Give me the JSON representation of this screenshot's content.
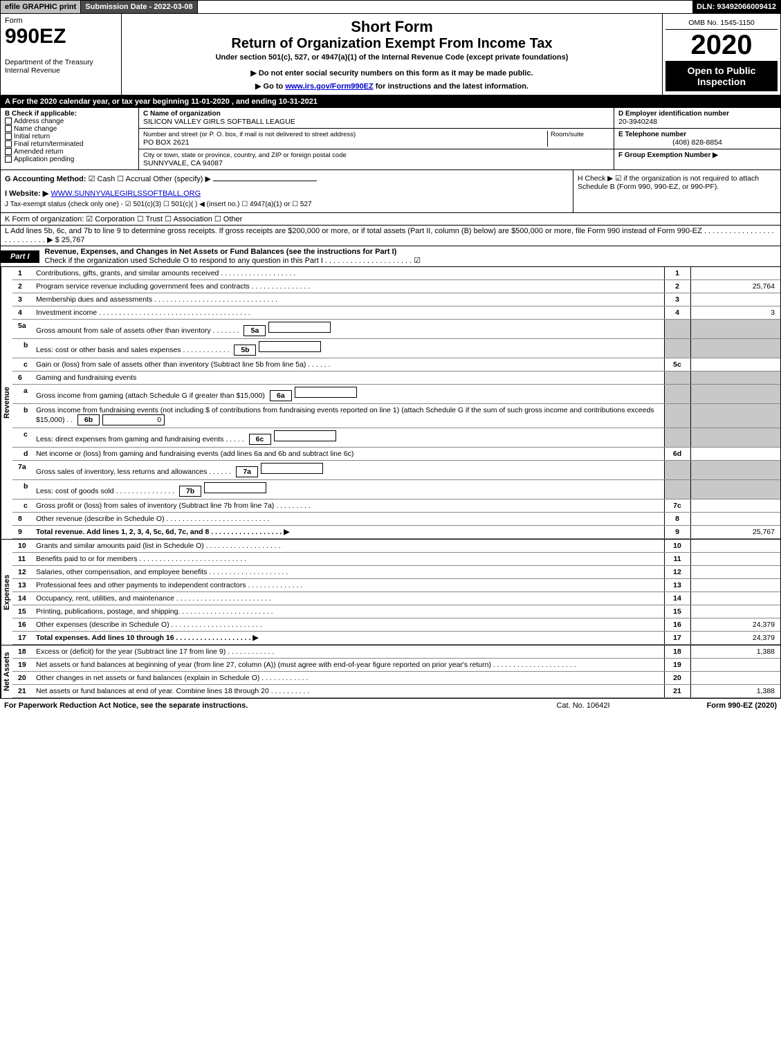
{
  "top": {
    "efile": "efile GRAPHIC print",
    "submission": "Submission Date - 2022-03-08",
    "dln": "DLN: 93492066009412"
  },
  "header": {
    "form_word": "Form",
    "form_num": "990EZ",
    "dept": "Department of the Treasury\nInternal Revenue",
    "title": "Short Form",
    "subtitle": "Return of Organization Exempt From Income Tax",
    "under": "Under section 501(c), 527, or 4947(a)(1) of the Internal Revenue Code (except private foundations)",
    "warn": "▶ Do not enter social security numbers on this form as it may be made public.",
    "goto_pre": "▶ Go to ",
    "goto_link": "www.irs.gov/Form990EZ",
    "goto_post": " for instructions and the latest information.",
    "omb": "OMB No. 1545-1150",
    "year": "2020",
    "open": "Open to Public Inspection"
  },
  "a_line": "A For the 2020 calendar year, or tax year beginning 11-01-2020 , and ending 10-31-2021",
  "b": {
    "label": "B Check if applicable:",
    "items": [
      "Address change",
      "Name change",
      "Initial return",
      "Final return/terminated",
      "Amended return",
      "Application pending"
    ]
  },
  "c": {
    "name_lbl": "C Name of organization",
    "name": "SILICON VALLEY GIRLS SOFTBALL LEAGUE",
    "addr_lbl": "Number and street (or P. O. box, if mail is not delivered to street address)",
    "addr": "PO BOX 2621",
    "room_lbl": "Room/suite",
    "city_lbl": "City or town, state or province, country, and ZIP or foreign postal code",
    "city": "SUNNYVALE, CA  94087"
  },
  "d": {
    "lbl": "D Employer identification number",
    "val": "20-3940248"
  },
  "e": {
    "lbl": "E Telephone number",
    "val": "(408) 828-8854"
  },
  "f": {
    "lbl": "F Group Exemption Number  ▶",
    "val": ""
  },
  "g": {
    "lbl": "G Accounting Method:",
    "opts": "☑ Cash  ☐ Accrual  Other (specify) ▶"
  },
  "h": {
    "text": "H  Check ▶ ☑ if the organization is not required to attach Schedule B (Form 990, 990-EZ, or 990-PF)."
  },
  "i": {
    "lbl": "I Website: ▶",
    "val": "WWW.SUNNYVALEGIRLSSOFTBALL.ORG"
  },
  "j": {
    "text": "J Tax-exempt status (check only one) - ☑ 501(c)(3) ☐ 501(c)(  ) ◀ (insert no.) ☐ 4947(a)(1) or ☐ 527"
  },
  "k": {
    "text": "K Form of organization: ☑ Corporation  ☐ Trust  ☐ Association  ☐ Other"
  },
  "l": {
    "text": "L Add lines 5b, 6c, and 7b to line 9 to determine gross receipts. If gross receipts are $200,000 or more, or if total assets (Part II, column (B) below) are $500,000 or more, file Form 990 instead of Form 990-EZ .  .  .  .  .  .  .  .  .  .  .  .  .  .  .  .  .  .  .  .  .  .  .  .  .  .  .  ▶ $ 25,767"
  },
  "part1": {
    "hdr": "Part I",
    "title": "Revenue, Expenses, and Changes in Net Assets or Fund Balances (see the instructions for Part I)",
    "check": "Check if the organization used Schedule O to respond to any question in this Part I .  .  .  .  .  .  .  .  .  .  .  .  .  .  .  .  .  .  .  .  . ☑"
  },
  "sides": {
    "rev": "Revenue",
    "exp": "Expenses",
    "net": "Net Assets"
  },
  "lines": [
    {
      "n": "1",
      "d": "Contributions, gifts, grants, and similar amounts received .  .  .  .  .  .  .  .  .  .  .  .  .  .  .  .  .  .  .",
      "b": "1",
      "v": ""
    },
    {
      "n": "2",
      "d": "Program service revenue including government fees and contracts .  .  .  .  .  .  .  .  .  .  .  .  .  .  .",
      "b": "2",
      "v": "25,764"
    },
    {
      "n": "3",
      "d": "Membership dues and assessments .  .  .  .  .  .  .  .  .  .  .  .  .  .  .  .  .  .  .  .  .  .  .  .  .  .  .  .  .  .  .",
      "b": "3",
      "v": ""
    },
    {
      "n": "4",
      "d": "Investment income .  .  .  .  .  .  .  .  .  .  .  .  .  .  .  .  .  .  .  .  .  .  .  .  .  .  .  .  .  .  .  .  .  .  .  .  .  .",
      "b": "4",
      "v": "3"
    },
    {
      "n": "5a",
      "d": "Gross amount from sale of assets other than inventory .  .  .  .  .  .  .",
      "sb": "5a",
      "sv": "",
      "shade": true
    },
    {
      "n": "b",
      "d": "Less: cost or other basis and sales expenses .  .  .  .  .  .  .  .  .  .  .  .",
      "sb": "5b",
      "sv": "",
      "shade": true
    },
    {
      "n": "c",
      "d": "Gain or (loss) from sale of assets other than inventory (Subtract line 5b from line 5a) .  .  .  .  .  .",
      "b": "5c",
      "v": ""
    },
    {
      "n": "6",
      "d": "Gaming and fundraising events",
      "shade": true,
      "noborder": true
    },
    {
      "n": "a",
      "d": "Gross income from gaming (attach Schedule G if greater than $15,000)",
      "sb": "6a",
      "sv": "",
      "shade": true
    },
    {
      "n": "b",
      "d": "Gross income from fundraising events (not including $                    of contributions from fundraising events reported on line 1) (attach Schedule G if the sum of such gross income and contributions exceeds $15,000)    .  .",
      "sb": "6b",
      "sv": "0",
      "shade": true
    },
    {
      "n": "c",
      "d": "Less: direct expenses from gaming and fundraising events  .  .  .  .  .",
      "sb": "6c",
      "sv": "",
      "shade": true
    },
    {
      "n": "d",
      "d": "Net income or (loss) from gaming and fundraising events (add lines 6a and 6b and subtract line 6c)",
      "b": "6d",
      "v": ""
    },
    {
      "n": "7a",
      "d": "Gross sales of inventory, less returns and allowances .  .  .  .  .  .",
      "sb": "7a",
      "sv": "",
      "shade": true
    },
    {
      "n": "b",
      "d": "Less: cost of goods sold      .  .  .  .  .  .  .  .  .  .  .  .  .  .  .",
      "sb": "7b",
      "sv": "",
      "shade": true
    },
    {
      "n": "c",
      "d": "Gross profit or (loss) from sales of inventory (Subtract line 7b from line 7a) .  .  .  .  .  .  .  .  .",
      "b": "7c",
      "v": ""
    },
    {
      "n": "8",
      "d": "Other revenue (describe in Schedule O) .  .  .  .  .  .  .  .  .  .  .  .  .  .  .  .  .  .  .  .  .  .  .  .  .  .",
      "b": "8",
      "v": ""
    },
    {
      "n": "9",
      "d": "Total revenue. Add lines 1, 2, 3, 4, 5c, 6d, 7c, and 8  .  .  .  .  .  .  .  .  .  .  .  .  .  .  .  .  .  . ▶",
      "b": "9",
      "v": "25,767",
      "bold": true
    }
  ],
  "exp_lines": [
    {
      "n": "10",
      "d": "Grants and similar amounts paid (list in Schedule O) .  .  .  .  .  .  .  .  .  .  .  .  .  .  .  .  .  .  .",
      "b": "10",
      "v": ""
    },
    {
      "n": "11",
      "d": "Benefits paid to or for members    .  .  .  .  .  .  .  .  .  .  .  .  .  .  .  .  .  .  .  .  .  .  .  .  .  .  .",
      "b": "11",
      "v": ""
    },
    {
      "n": "12",
      "d": "Salaries, other compensation, and employee benefits .  .  .  .  .  .  .  .  .  .  .  .  .  .  .  .  .  .  .  .",
      "b": "12",
      "v": ""
    },
    {
      "n": "13",
      "d": "Professional fees and other payments to independent contractors .  .  .  .  .  .  .  .  .  .  .  .  .  .",
      "b": "13",
      "v": ""
    },
    {
      "n": "14",
      "d": "Occupancy, rent, utilities, and maintenance .  .  .  .  .  .  .  .  .  .  .  .  .  .  .  .  .  .  .  .  .  .  .  .",
      "b": "14",
      "v": ""
    },
    {
      "n": "15",
      "d": "Printing, publications, postage, and shipping.  .  .  .  .  .  .  .  .  .  .  .  .  .  .  .  .  .  .  .  .  .  .  .",
      "b": "15",
      "v": ""
    },
    {
      "n": "16",
      "d": "Other expenses (describe in Schedule O)    .  .  .  .  .  .  .  .  .  .  .  .  .  .  .  .  .  .  .  .  .  .  .",
      "b": "16",
      "v": "24,379"
    },
    {
      "n": "17",
      "d": "Total expenses. Add lines 10 through 16    .  .  .  .  .  .  .  .  .  .  .  .  .  .  .  .  .  .  . ▶",
      "b": "17",
      "v": "24,379",
      "bold": true
    }
  ],
  "net_lines": [
    {
      "n": "18",
      "d": "Excess or (deficit) for the year (Subtract line 17 from line 9)     .  .  .  .  .  .  .  .  .  .  .  .",
      "b": "18",
      "v": "1,388"
    },
    {
      "n": "19",
      "d": "Net assets or fund balances at beginning of year (from line 27, column (A)) (must agree with end-of-year figure reported on prior year's return) .  .  .  .  .  .  .  .  .  .  .  .  .  .  .  .  .  .  .  .  .",
      "b": "19",
      "v": ""
    },
    {
      "n": "20",
      "d": "Other changes in net assets or fund balances (explain in Schedule O) .  .  .  .  .  .  .  .  .  .  .  .",
      "b": "20",
      "v": ""
    },
    {
      "n": "21",
      "d": "Net assets or fund balances at end of year. Combine lines 18 through 20 .  .  .  .  .  .  .  .  .  .",
      "b": "21",
      "v": "1,388"
    }
  ],
  "footer": {
    "left": "For Paperwork Reduction Act Notice, see the separate instructions.",
    "mid": "Cat. No. 10642I",
    "right": "Form 990-EZ (2020)"
  },
  "colors": {
    "black": "#000000",
    "darkgray": "#4a4a4a",
    "shade": "#c8c8c8",
    "link": "#0000cc"
  }
}
